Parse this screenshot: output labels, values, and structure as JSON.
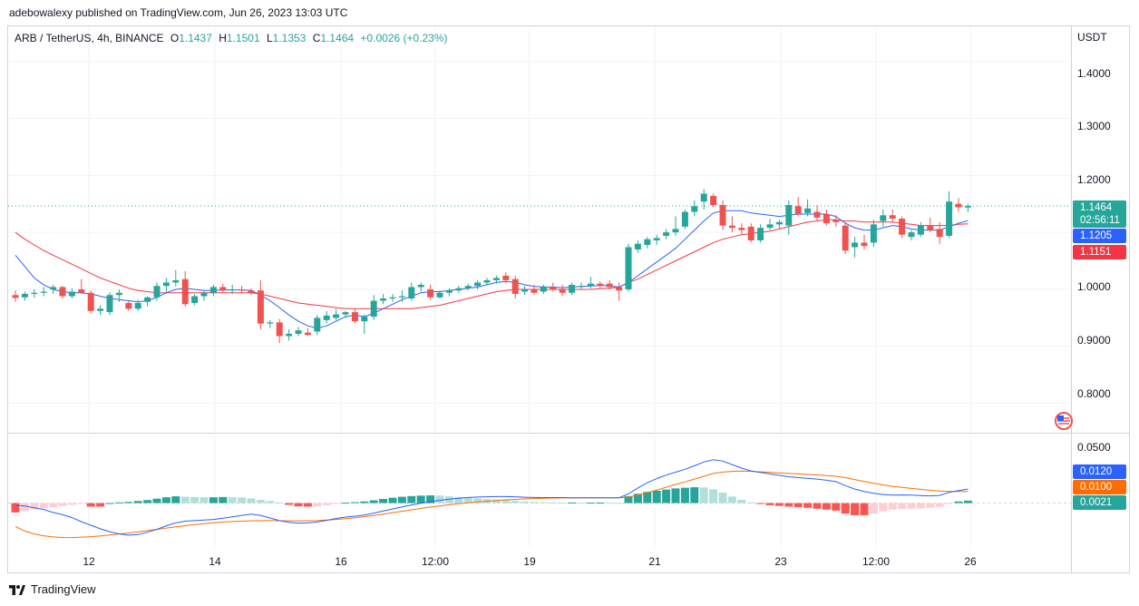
{
  "header": {
    "published_by": "adebowalexy published on TradingView.com, Jun 26, 2023 13:03 UTC"
  },
  "legend": {
    "symbol": "ARB / TetherUS, 4h, BINANCE",
    "open_k": "O",
    "open": "1.1437",
    "high_k": "H",
    "high": "1.1501",
    "low_k": "L",
    "low": "1.1353",
    "close_k": "C",
    "close": "1.1464",
    "change": "+0.0026 (+0.23%)"
  },
  "price_axis": {
    "currency": "USDT",
    "ticks": [
      "1.4000",
      "1.3000",
      "1.2000",
      "1.1000",
      "1.0000",
      "0.9000",
      "0.8000"
    ],
    "last_price": "1.1464",
    "countdown": "02:56:11",
    "ma_fast_value": "1.1205",
    "ma_slow_value": "1.1151"
  },
  "macd_axis": {
    "tick": "0.0500",
    "macd_value": "0.0120",
    "signal_value": "0.0100",
    "hist_value": "0.0021"
  },
  "time_axis": {
    "labels": [
      "12",
      "14",
      "16",
      "12:00",
      "19",
      "21",
      "23",
      "12:00",
      "26"
    ]
  },
  "brand": {
    "name": "TradingView"
  },
  "colors": {
    "up": "#26a69a",
    "down": "#ef5350",
    "ma_fast": "#2962ff",
    "ma_slow": "#f23645",
    "macd": "#2962ff",
    "signal": "#ff6d00"
  },
  "chart_data": [
    {
      "type": "candlestick",
      "title": "ARB / TetherUS, 4h, BINANCE",
      "ylim": [
        0.75,
        1.46
      ],
      "yticks": [
        0.8,
        0.9,
        1.0,
        1.1,
        1.2,
        1.3,
        1.4
      ],
      "candles": [
        [
          0.99,
          0.998,
          0.978,
          0.985
        ],
        [
          0.986,
          0.996,
          0.98,
          0.992
        ],
        [
          0.992,
          1.0,
          0.985,
          0.994
        ],
        [
          0.994,
          1.004,
          0.988,
          0.996
        ],
        [
          1.0,
          1.008,
          0.992,
          1.004
        ],
        [
          1.004,
          1.006,
          0.984,
          0.988
        ],
        [
          0.988,
          1.002,
          0.984,
          0.996
        ],
        [
          1.0,
          1.018,
          0.992,
          0.994
        ],
        [
          0.994,
          0.998,
          0.958,
          0.962
        ],
        [
          0.962,
          0.972,
          0.955,
          0.966
        ],
        [
          0.96,
          0.995,
          0.955,
          0.99
        ],
        [
          0.99,
          1.0,
          0.978,
          0.994
        ],
        [
          0.976,
          0.98,
          0.962,
          0.966
        ],
        [
          0.966,
          0.982,
          0.962,
          0.976
        ],
        [
          0.978,
          0.988,
          0.97,
          0.986
        ],
        [
          0.986,
          1.012,
          0.98,
          1.006
        ],
        [
          1.006,
          1.02,
          0.995,
          1.012
        ],
        [
          1.012,
          1.034,
          1.005,
          1.016
        ],
        [
          1.018,
          1.032,
          0.97,
          0.974
        ],
        [
          0.976,
          0.992,
          0.972,
          0.988
        ],
        [
          0.988,
          0.998,
          0.98,
          0.994
        ],
        [
          0.994,
          1.008,
          0.988,
          1.004
        ],
        [
          1.004,
          1.01,
          0.995,
          0.998
        ],
        [
          0.998,
          1.008,
          0.992,
          1.0
        ],
        [
          1.0,
          1.006,
          0.994,
          0.998
        ],
        [
          0.998,
          1.002,
          0.99,
          0.994
        ],
        [
          0.998,
          1.016,
          0.93,
          0.94
        ],
        [
          0.94,
          0.946,
          0.932,
          0.942
        ],
        [
          0.942,
          0.948,
          0.906,
          0.918
        ],
        [
          0.918,
          0.93,
          0.91,
          0.922
        ],
        [
          0.922,
          0.934,
          0.918,
          0.928
        ],
        [
          0.924,
          0.932,
          0.918,
          0.92
        ],
        [
          0.926,
          0.955,
          0.92,
          0.95
        ],
        [
          0.946,
          0.962,
          0.94,
          0.954
        ],
        [
          0.95,
          0.966,
          0.946,
          0.956
        ],
        [
          0.956,
          0.962,
          0.95,
          0.96
        ],
        [
          0.96,
          0.966,
          0.94,
          0.944
        ],
        [
          0.944,
          0.956,
          0.922,
          0.952
        ],
        [
          0.952,
          0.99,
          0.946,
          0.98
        ],
        [
          0.98,
          0.992,
          0.974,
          0.984
        ],
        [
          0.984,
          0.992,
          0.978,
          0.986
        ],
        [
          0.986,
          0.998,
          0.978,
          0.988
        ],
        [
          0.984,
          1.012,
          0.98,
          1.004
        ],
        [
          1.004,
          1.012,
          0.996,
          1.008
        ],
        [
          1.0,
          1.008,
          0.982,
          0.986
        ],
        [
          0.986,
          0.998,
          0.984,
          0.994
        ],
        [
          0.994,
          1.002,
          0.988,
          0.998
        ],
        [
          0.998,
          1.006,
          0.994,
          1.002
        ],
        [
          1.002,
          1.01,
          0.998,
          1.006
        ],
        [
          1.006,
          1.016,
          1.0,
          1.012
        ],
        [
          1.012,
          1.02,
          1.008,
          1.016
        ],
        [
          1.016,
          1.024,
          1.01,
          1.02
        ],
        [
          1.024,
          1.03,
          1.01,
          1.016
        ],
        [
          1.018,
          1.024,
          0.984,
          0.992
        ],
        [
          0.996,
          1.006,
          0.99,
          1.0
        ],
        [
          1.0,
          1.008,
          0.99,
          0.994
        ],
        [
          0.996,
          1.008,
          0.992,
          1.004
        ],
        [
          1.004,
          1.012,
          0.996,
          1.0
        ],
        [
          1.0,
          1.008,
          0.988,
          0.994
        ],
        [
          0.994,
          1.012,
          0.99,
          1.008
        ],
        [
          1.004,
          1.012,
          1.0,
          1.006
        ],
        [
          1.006,
          1.022,
          1.002,
          1.01
        ],
        [
          1.01,
          1.014,
          1.002,
          1.006
        ],
        [
          1.01,
          1.016,
          1.0,
          1.004
        ],
        [
          1.004,
          1.012,
          0.98,
          0.998
        ],
        [
          1.0,
          1.08,
          0.996,
          1.074
        ],
        [
          1.07,
          1.086,
          1.064,
          1.08
        ],
        [
          1.078,
          1.092,
          1.072,
          1.088
        ],
        [
          1.086,
          1.096,
          1.078,
          1.09
        ],
        [
          1.094,
          1.106,
          1.088,
          1.1
        ],
        [
          1.1,
          1.128,
          1.094,
          1.106
        ],
        [
          1.11,
          1.14,
          1.106,
          1.136
        ],
        [
          1.136,
          1.156,
          1.128,
          1.146
        ],
        [
          1.154,
          1.176,
          1.14,
          1.168
        ],
        [
          1.164,
          1.168,
          1.144,
          1.148
        ],
        [
          1.148,
          1.156,
          1.104,
          1.112
        ],
        [
          1.112,
          1.128,
          1.1,
          1.108
        ],
        [
          1.108,
          1.116,
          1.096,
          1.104
        ],
        [
          1.11,
          1.116,
          1.082,
          1.086
        ],
        [
          1.086,
          1.114,
          1.082,
          1.108
        ],
        [
          1.108,
          1.124,
          1.104,
          1.114
        ],
        [
          1.114,
          1.122,
          1.106,
          1.118
        ],
        [
          1.112,
          1.156,
          1.096,
          1.148
        ],
        [
          1.146,
          1.162,
          1.128,
          1.132
        ],
        [
          1.134,
          1.158,
          1.128,
          1.142
        ],
        [
          1.136,
          1.148,
          1.12,
          1.126
        ],
        [
          1.132,
          1.14,
          1.112,
          1.116
        ],
        [
          1.122,
          1.13,
          1.11,
          1.118
        ],
        [
          1.112,
          1.118,
          1.062,
          1.068
        ],
        [
          1.074,
          1.092,
          1.056,
          1.082
        ],
        [
          1.082,
          1.096,
          1.07,
          1.076
        ],
        [
          1.082,
          1.122,
          1.074,
          1.114
        ],
        [
          1.12,
          1.14,
          1.11,
          1.13
        ],
        [
          1.13,
          1.14,
          1.118,
          1.124
        ],
        [
          1.124,
          1.128,
          1.09,
          1.096
        ],
        [
          1.092,
          1.104,
          1.086,
          1.1
        ],
        [
          1.096,
          1.118,
          1.092,
          1.112
        ],
        [
          1.112,
          1.126,
          1.1,
          1.104
        ],
        [
          1.106,
          1.118,
          1.08,
          1.092
        ],
        [
          1.094,
          1.172,
          1.09,
          1.154
        ],
        [
          1.15,
          1.16,
          1.136,
          1.144
        ],
        [
          1.1437,
          1.1501,
          1.1353,
          1.1464
        ]
      ],
      "ma_fast": [
        1.06,
        1.04,
        1.02,
        1.008,
        1.0,
        0.996,
        0.994,
        0.994,
        0.992,
        0.988,
        0.984,
        0.982,
        0.98,
        0.978,
        0.98,
        0.986,
        0.994,
        1.0,
        1.002,
        1.0,
        0.998,
        0.998,
        0.999,
        0.999,
        0.999,
        0.998,
        0.99,
        0.98,
        0.968,
        0.955,
        0.944,
        0.936,
        0.932,
        0.936,
        0.944,
        0.952,
        0.955,
        0.952,
        0.958,
        0.966,
        0.974,
        0.982,
        0.988,
        0.994,
        0.996,
        0.996,
        0.998,
        1.0,
        1.002,
        1.004,
        1.008,
        1.012,
        1.014,
        1.012,
        1.008,
        1.005,
        1.004,
        1.004,
        1.003,
        1.004,
        1.005,
        1.006,
        1.007,
        1.006,
        1.004,
        1.012,
        1.024,
        1.036,
        1.048,
        1.06,
        1.072,
        1.088,
        1.104,
        1.12,
        1.134,
        1.138,
        1.138,
        1.138,
        1.134,
        1.132,
        1.13,
        1.128,
        1.13,
        1.132,
        1.132,
        1.132,
        1.132,
        1.128,
        1.116,
        1.108,
        1.104,
        1.104,
        1.108,
        1.112,
        1.11,
        1.106,
        1.104,
        1.104,
        1.104,
        1.11,
        1.116,
        1.1205
      ],
      "ma_slow": [
        1.1,
        1.088,
        1.078,
        1.068,
        1.06,
        1.052,
        1.044,
        1.036,
        1.028,
        1.02,
        1.014,
        1.008,
        1.002,
        0.998,
        0.996,
        0.994,
        0.994,
        0.994,
        0.994,
        0.994,
        0.994,
        0.994,
        0.994,
        0.994,
        0.994,
        0.994,
        0.992,
        0.988,
        0.984,
        0.98,
        0.976,
        0.974,
        0.972,
        0.97,
        0.968,
        0.966,
        0.966,
        0.966,
        0.966,
        0.966,
        0.966,
        0.966,
        0.966,
        0.968,
        0.97,
        0.972,
        0.976,
        0.98,
        0.984,
        0.988,
        0.992,
        0.996,
        0.998,
        1.0,
        1.0,
        1.0,
        1.0,
        1.0,
        1.0,
        1.0,
        1.0,
        1.0,
        1.001,
        1.002,
        1.004,
        1.012,
        1.018,
        1.026,
        1.034,
        1.042,
        1.05,
        1.058,
        1.066,
        1.074,
        1.082,
        1.088,
        1.092,
        1.096,
        1.098,
        1.1,
        1.102,
        1.106,
        1.11,
        1.114,
        1.118,
        1.12,
        1.122,
        1.122,
        1.12,
        1.12,
        1.118,
        1.118,
        1.118,
        1.118,
        1.116,
        1.114,
        1.112,
        1.112,
        1.112,
        1.112,
        1.114,
        1.1151
      ]
    },
    {
      "type": "macd",
      "ylim": [
        -0.04,
        0.058
      ],
      "histogram": [
        -0.008,
        -0.007,
        -0.0055,
        -0.0045,
        -0.0035,
        -0.0025,
        -0.0015,
        -0.0005,
        -0.003,
        -0.003,
        0.0,
        0.0006,
        0.001,
        0.0018,
        0.0026,
        0.0038,
        0.005,
        0.0058,
        0.0055,
        0.0052,
        0.005,
        0.005,
        0.0052,
        0.005,
        0.0048,
        0.004,
        0.0028,
        0.0018,
        0.0005,
        -0.0015,
        -0.0028,
        -0.003,
        -0.0028,
        -0.0018,
        -0.0006,
        0.0004,
        0.0008,
        0.0014,
        0.0024,
        0.0036,
        0.0046,
        0.0054,
        0.006,
        0.0064,
        0.0066,
        0.0064,
        0.0058,
        0.0052,
        0.0046,
        0.004,
        0.0034,
        0.003,
        0.0026,
        0.002,
        0.0014,
        0.001,
        0.0008,
        0.0006,
        0.0005,
        0.0005,
        0.0004,
        0.0004,
        0.0004,
        0.0003,
        0.0002,
        0.006,
        0.008,
        0.0096,
        0.0106,
        0.0116,
        0.0126,
        0.0132,
        0.0136,
        0.0134,
        0.0118,
        0.009,
        0.0056,
        0.0028,
        0.0006,
        -0.0008,
        -0.0018,
        -0.0024,
        -0.003,
        -0.0034,
        -0.004,
        -0.0048,
        -0.0056,
        -0.0064,
        -0.009,
        -0.0104,
        -0.0104,
        -0.009,
        -0.007,
        -0.0056,
        -0.005,
        -0.0048,
        -0.0046,
        -0.004,
        -0.0032,
        -0.001,
        0.0014,
        0.0021
      ],
      "macd": [
        -0.002,
        -0.0025,
        -0.004,
        -0.0055,
        -0.008,
        -0.01,
        -0.0125,
        -0.016,
        -0.019,
        -0.022,
        -0.0245,
        -0.0265,
        -0.0275,
        -0.027,
        -0.025,
        -0.0225,
        -0.0195,
        -0.017,
        -0.0155,
        -0.015,
        -0.0145,
        -0.014,
        -0.013,
        -0.0118,
        -0.0105,
        -0.0095,
        -0.0105,
        -0.0128,
        -0.015,
        -0.0165,
        -0.0172,
        -0.017,
        -0.0162,
        -0.0148,
        -0.0132,
        -0.012,
        -0.0112,
        -0.0102,
        -0.0086,
        -0.0068,
        -0.005,
        -0.0032,
        -0.0016,
        -0.0002,
        0.0012,
        0.0024,
        0.0034,
        0.0042,
        0.0048,
        0.0052,
        0.0054,
        0.0056,
        0.0056,
        0.0054,
        0.005,
        0.0048,
        0.0047,
        0.0047,
        0.0047,
        0.0046,
        0.0045,
        0.0046,
        0.0046,
        0.0046,
        0.0046,
        0.008,
        0.013,
        0.0175,
        0.021,
        0.024,
        0.0265,
        0.029,
        0.032,
        0.0352,
        0.0372,
        0.036,
        0.033,
        0.03,
        0.0276,
        0.0262,
        0.025,
        0.0238,
        0.0226,
        0.0218,
        0.0212,
        0.0206,
        0.0196,
        0.0184,
        0.015,
        0.012,
        0.01,
        0.0084,
        0.0074,
        0.0068,
        0.007,
        0.0068,
        0.0064,
        0.0062,
        0.0066,
        0.0092,
        0.0108,
        0.012
      ],
      "signal": [
        -0.02,
        -0.024,
        -0.0265,
        -0.028,
        -0.029,
        -0.0295,
        -0.0296,
        -0.0292,
        -0.0288,
        -0.0282,
        -0.0274,
        -0.0265,
        -0.0256,
        -0.0246,
        -0.0236,
        -0.0225,
        -0.0214,
        -0.0204,
        -0.0194,
        -0.0184,
        -0.0176,
        -0.0168,
        -0.0162,
        -0.0158,
        -0.0155,
        -0.0152,
        -0.015,
        -0.015,
        -0.0151,
        -0.0152,
        -0.0152,
        -0.0151,
        -0.015,
        -0.0146,
        -0.014,
        -0.0134,
        -0.0126,
        -0.0116,
        -0.0106,
        -0.0094,
        -0.0082,
        -0.007,
        -0.0058,
        -0.0046,
        -0.0034,
        -0.0024,
        -0.0014,
        -0.0006,
        0.0002,
        0.001,
        0.0016,
        0.0022,
        0.0028,
        0.0032,
        0.0036,
        0.0039,
        0.0042,
        0.0043,
        0.0044,
        0.0044,
        0.0045,
        0.0045,
        0.0045,
        0.0045,
        0.0045,
        0.0052,
        0.0068,
        0.009,
        0.0112,
        0.0136,
        0.016,
        0.0182,
        0.0206,
        0.023,
        0.0254,
        0.0266,
        0.0272,
        0.0274,
        0.0272,
        0.0268,
        0.0264,
        0.0258,
        0.0254,
        0.025,
        0.0246,
        0.0242,
        0.0236,
        0.023,
        0.0218,
        0.0202,
        0.0186,
        0.017,
        0.0156,
        0.0144,
        0.0134,
        0.0126,
        0.0118,
        0.011,
        0.0104,
        0.01,
        0.01,
        0.01
      ]
    }
  ]
}
